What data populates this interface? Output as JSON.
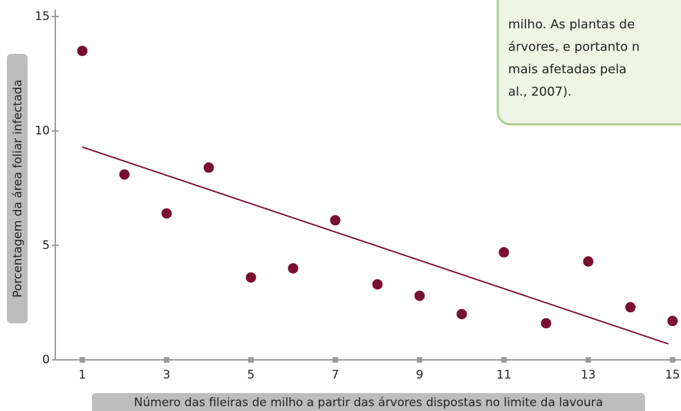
{
  "chart_data": {
    "type": "scatter",
    "x": [
      1,
      2,
      3,
      4,
      5,
      6,
      7,
      8,
      9,
      10,
      11,
      12,
      13,
      14,
      15
    ],
    "values": [
      13.5,
      8.1,
      6.4,
      8.4,
      3.6,
      4.0,
      6.1,
      3.3,
      2.8,
      2.0,
      4.7,
      1.6,
      4.3,
      2.3,
      1.7
    ],
    "color": "#7a1030",
    "trendline": {
      "x": [
        1,
        14.9
      ],
      "values": [
        9.3,
        0.7
      ],
      "color": "#7a1030"
    },
    "xlabel": "Número das fileiras de milho a partir das árvores dispostas no limite da lavoura",
    "ylabel": "Porcentagem da área foliar infectada",
    "xlim": [
      0.36,
      15.2
    ],
    "ylim": [
      0,
      15
    ],
    "xticks": [
      1,
      3,
      5,
      7,
      9,
      11,
      13,
      15
    ],
    "yticks": [
      0,
      5,
      10,
      15
    ]
  },
  "note": {
    "lines": [
      "milho. As plantas de",
      "árvores, e portanto n",
      "mais afetadas pela",
      "al., 2007)."
    ]
  }
}
